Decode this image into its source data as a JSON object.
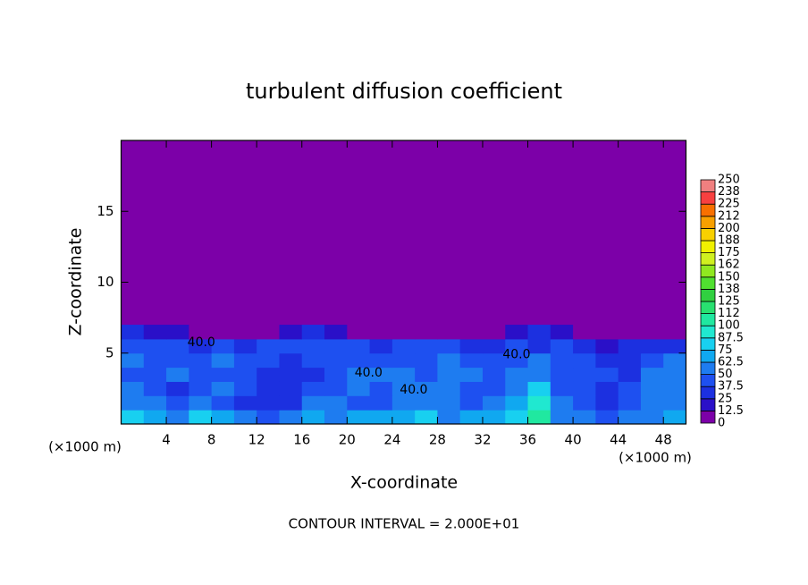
{
  "chart_data": {
    "type": "contour",
    "title": "turbulent diffusion coefficient",
    "x_label": "X-coordinate",
    "y_label": "Z-coordinate",
    "x_unit_left": "(×1000 m)",
    "x_unit_right": "(×1000 m)",
    "footer": "CONTOUR INTERVAL = 2.000E+01",
    "xlim": [
      0,
      50
    ],
    "ylim": [
      0,
      20
    ],
    "xticks": [
      4,
      8,
      12,
      16,
      20,
      24,
      28,
      32,
      36,
      40,
      44,
      48
    ],
    "yticks": [
      5,
      10,
      15
    ],
    "x": [
      1,
      3,
      5,
      7,
      9,
      11,
      13,
      15,
      17,
      19,
      21,
      23,
      25,
      27,
      29,
      31,
      33,
      35,
      37,
      39,
      41,
      43,
      45,
      47,
      49
    ],
    "y": [
      0.5,
      1.5,
      2.5,
      3.5,
      4.5,
      5.5,
      6.5
    ],
    "z": [
      [
        75,
        70,
        60,
        75,
        70,
        50,
        45,
        60,
        70,
        55,
        70,
        65,
        70,
        75,
        60,
        70,
        65,
        80,
        100,
        60,
        55,
        45,
        60,
        55,
        70
      ],
      [
        60,
        50,
        40,
        55,
        45,
        35,
        30,
        35,
        55,
        60,
        45,
        40,
        55,
        60,
        50,
        45,
        50,
        70,
        90,
        50,
        40,
        35,
        45,
        50,
        60
      ],
      [
        50,
        45,
        35,
        45,
        50,
        40,
        30,
        30,
        40,
        45,
        60,
        45,
        60,
        50,
        55,
        40,
        45,
        60,
        80,
        45,
        40,
        35,
        40,
        55,
        60
      ],
      [
        45,
        40,
        50,
        40,
        45,
        45,
        30,
        30,
        35,
        40,
        55,
        55,
        50,
        45,
        50,
        50,
        40,
        50,
        60,
        40,
        40,
        40,
        35,
        50,
        55
      ],
      [
        55,
        45,
        40,
        45,
        50,
        40,
        45,
        35,
        40,
        40,
        40,
        45,
        45,
        40,
        55,
        45,
        40,
        45,
        50,
        45,
        40,
        30,
        35,
        40,
        50
      ],
      [
        45,
        40,
        40,
        35,
        40,
        30,
        40,
        45,
        40,
        45,
        40,
        35,
        40,
        45,
        40,
        35,
        30,
        40,
        35,
        40,
        30,
        20,
        25,
        30,
        35
      ],
      [
        30,
        20,
        15,
        10,
        10,
        5,
        10,
        20,
        25,
        20,
        10,
        5,
        10,
        0,
        5,
        0,
        0,
        20,
        25,
        15,
        10,
        0,
        0,
        0,
        10
      ]
    ],
    "colorbar_ticks": [
      0,
      12.5,
      25,
      37.5,
      50,
      62.5,
      75,
      87.5,
      100,
      {
        "value": 112.5,
        "label": "112"
      },
      125,
      {
        "value": 137.5,
        "label": "138"
      },
      150,
      {
        "value": 162.5,
        "label": "162"
      },
      175,
      {
        "value": 187.5,
        "label": "188"
      },
      200,
      {
        "value": 212.5,
        "label": "212"
      },
      225,
      {
        "value": 237.5,
        "label": "238"
      },
      250
    ],
    "colors": [
      "#7c00a8",
      "#2a10c8",
      "#1c30e0",
      "#1e50f0",
      "#1e7cf0",
      "#10a8f0",
      "#18d0f0",
      "#20e8d0",
      "#20e8a0",
      "#28e070",
      "#30d040",
      "#50e030",
      "#90e820",
      "#d0f020",
      "#f0f000",
      "#f8d000",
      "#f8a000",
      "#f87000",
      "#f84040",
      "#f08080"
    ],
    "annotations": [
      {
        "text": "40.0",
        "x": 7.1,
        "y": 5.75
      },
      {
        "text": "40.0",
        "x": 21.9,
        "y": 3.6
      },
      {
        "text": "40.0",
        "x": 25.9,
        "y": 2.4
      },
      {
        "text": "40.0",
        "x": 35,
        "y": 4.9
      }
    ]
  }
}
